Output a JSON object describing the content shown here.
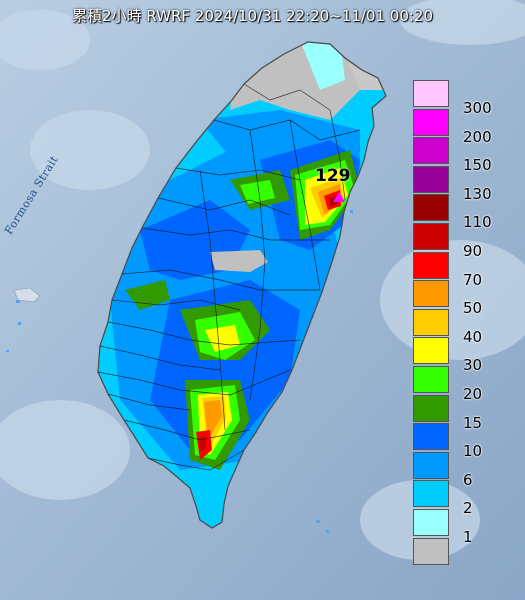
{
  "title": "累積2小時 RWRF 2024/10/31 22:20~11/01 00:20",
  "strait_label": "Formosa Strait",
  "max_value_label": "129",
  "legend": [
    {
      "label": "300",
      "color": "#ffc6ff"
    },
    {
      "label": "200",
      "color": "#ff00ff"
    },
    {
      "label": "150",
      "color": "#cc00cc"
    },
    {
      "label": "130",
      "color": "#990099"
    },
    {
      "label": "110",
      "color": "#990000"
    },
    {
      "label": "90",
      "color": "#cc0000"
    },
    {
      "label": "70",
      "color": "#ff0000"
    },
    {
      "label": "50",
      "color": "#ff9900"
    },
    {
      "label": "40",
      "color": "#ffcc00"
    },
    {
      "label": "30",
      "color": "#ffff00"
    },
    {
      "label": "20",
      "color": "#33ff00"
    },
    {
      "label": "15",
      "color": "#339900"
    },
    {
      "label": "10",
      "color": "#0066ff"
    },
    {
      "label": "6",
      "color": "#0099ff"
    },
    {
      "label": "2",
      "color": "#00ccff"
    },
    {
      "label": "1",
      "color": "#99ffff"
    },
    {
      "label": "",
      "color": "#c0c0c0"
    }
  ]
}
